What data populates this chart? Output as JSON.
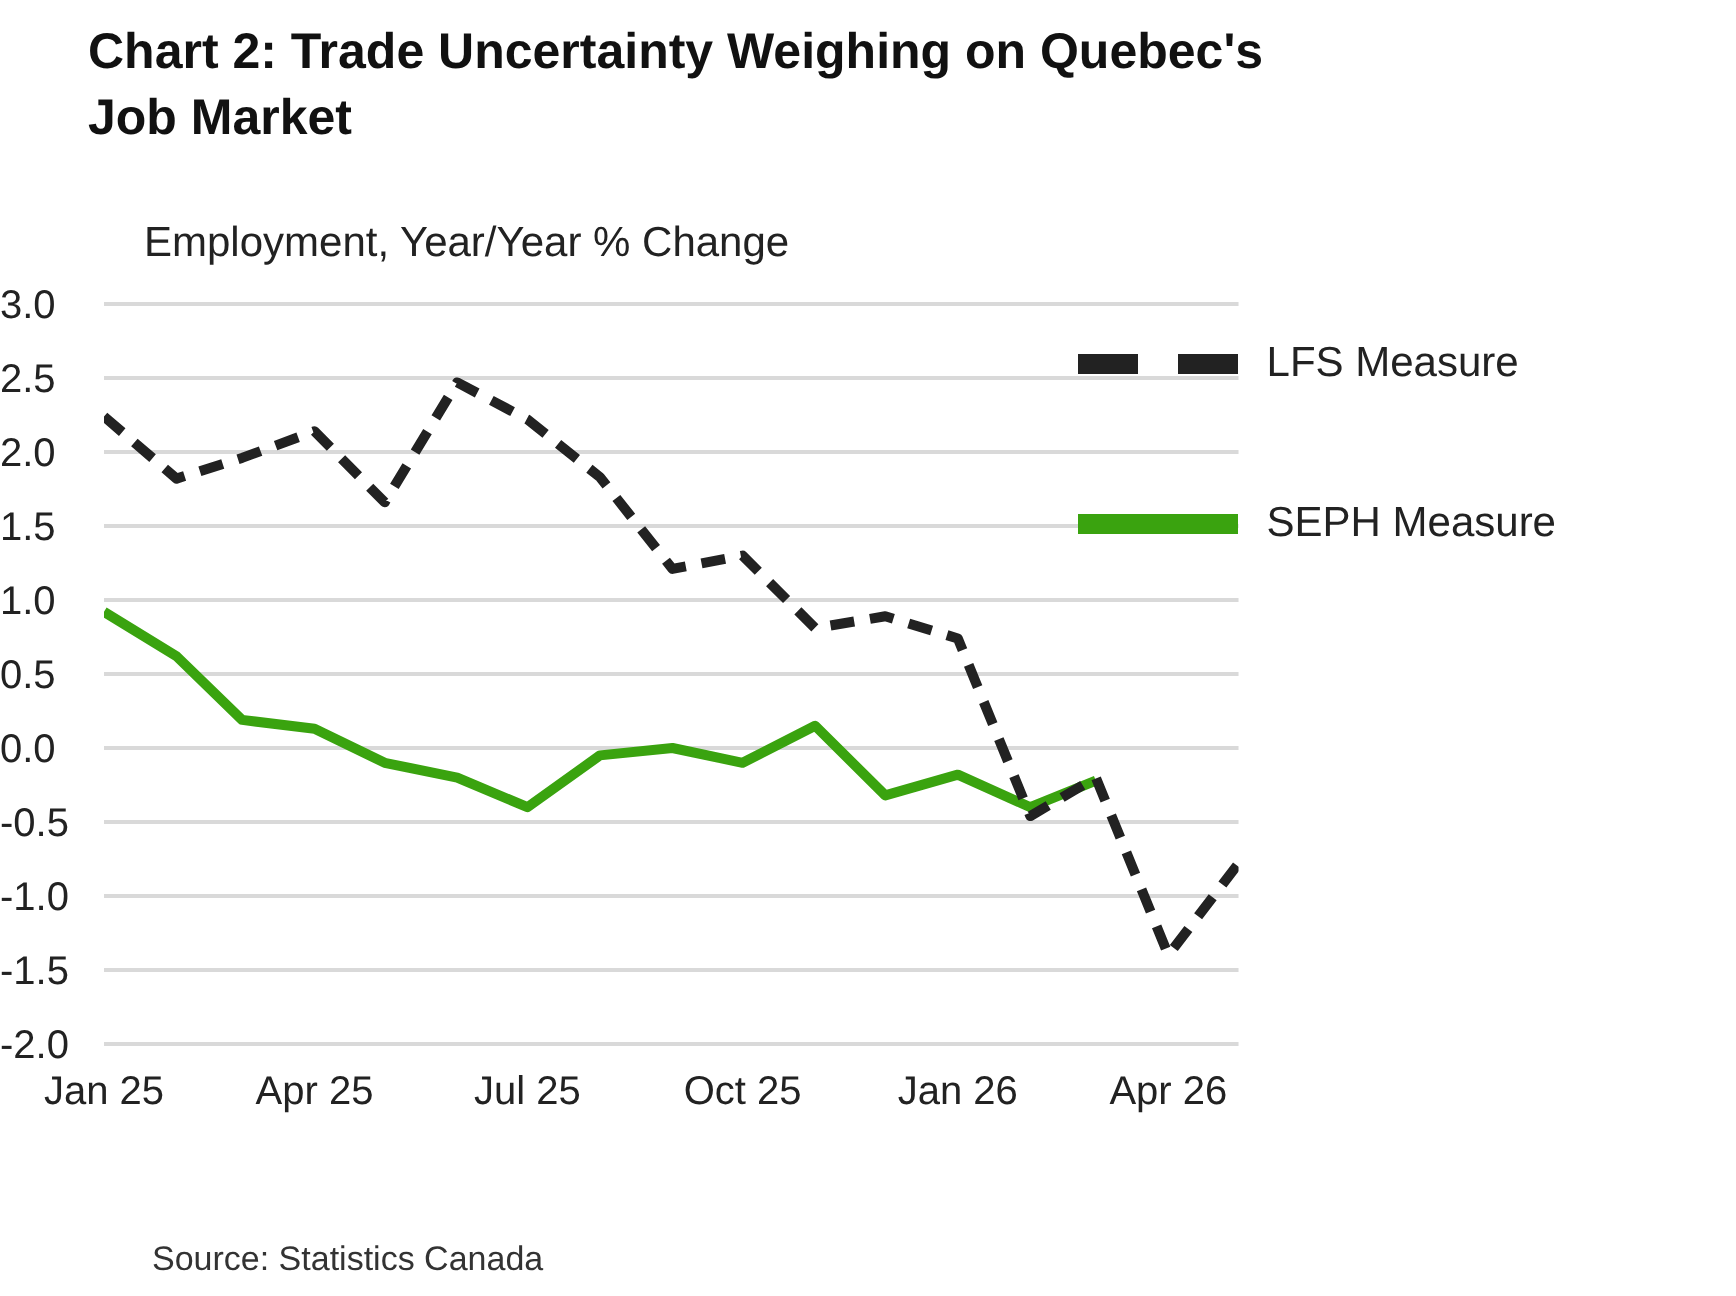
{
  "chart_data": {
    "type": "line",
    "title": "Chart 2: Trade Uncertainty Weighing on Quebec's Job Market",
    "ylabel": "Employment, Year/Year % Change",
    "annotations": [
      "Source: Statistics Canada"
    ],
    "series": [
      {
        "name": "SEPH Measure",
        "color": "#3aa30f",
        "line_style": "solid",
        "x": [
          "2025-01",
          "2025-02",
          "2025-03",
          "2025-04",
          "2025-05",
          "2025-06",
          "2025-07",
          "2025-08",
          "2025-09",
          "2025-10",
          "2025-11",
          "2025-12",
          "2026-01",
          "2026-02",
          "2026-03"
        ],
        "values": [
          0.92,
          0.62,
          0.19,
          0.13,
          -0.1,
          -0.2,
          -0.4,
          -0.05,
          0.0,
          -0.1,
          0.15,
          -0.32,
          -0.18,
          -0.4,
          -0.22
        ]
      },
      {
        "name": "LFS Measure",
        "color": "#222222",
        "line_style": "dashed",
        "x": [
          "2025-01",
          "2025-02",
          "2025-03",
          "2025-04",
          "2025-05",
          "2025-06",
          "2025-07",
          "2025-08",
          "2025-09",
          "2025-10",
          "2025-11",
          "2025-12",
          "2026-01",
          "2026-02",
          "2026-03",
          "2026-04",
          "2026-05"
        ],
        "values": [
          2.24,
          1.82,
          1.96,
          2.14,
          1.66,
          2.47,
          2.22,
          1.83,
          1.21,
          1.3,
          0.81,
          0.89,
          0.74,
          -0.46,
          -0.2,
          -1.4,
          -0.78
        ]
      }
    ],
    "xlim": [
      "2025-01",
      "2026-05"
    ],
    "xticks": [
      {
        "value": "2025-01",
        "label": "Jan 25"
      },
      {
        "value": "2025-04",
        "label": "Apr 25"
      },
      {
        "value": "2025-07",
        "label": "Jul 25"
      },
      {
        "value": "2025-10",
        "label": "Oct 25"
      },
      {
        "value": "2026-01",
        "label": "Jan 26"
      },
      {
        "value": "2026-04",
        "label": "Apr 26"
      }
    ],
    "ylim": [
      -2,
      3
    ],
    "yticks": [
      {
        "value": -2,
        "label": "-2.0"
      },
      {
        "value": -1.5,
        "label": "-1.5"
      },
      {
        "value": -1,
        "label": "-1.0"
      },
      {
        "value": -0.5,
        "label": "-0.5"
      },
      {
        "value": 0,
        "label": "0.0"
      },
      {
        "value": 0.5,
        "label": "0.5"
      },
      {
        "value": 1,
        "label": "1.0"
      },
      {
        "value": 1.5,
        "label": "1.5"
      },
      {
        "value": 2,
        "label": "2.0"
      },
      {
        "value": 2.5,
        "label": "2.5"
      },
      {
        "value": 3,
        "label": "3.0"
      }
    ],
    "grid": "y",
    "legend": "top right",
    "marker": "none"
  }
}
